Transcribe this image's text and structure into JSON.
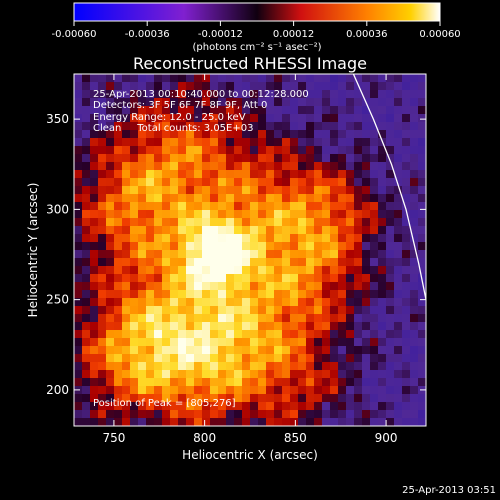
{
  "chart_data": {
    "type": "heatmap",
    "title": "Reconstructed RHESSI Image",
    "xlabel": "Heliocentric X (arcsec)",
    "ylabel": "Heliocentric Y (arcsec)",
    "xlim": [
      728,
      922
    ],
    "ylim": [
      180,
      375
    ],
    "x_ticks": [
      750,
      800,
      850,
      900
    ],
    "y_ticks": [
      200,
      250,
      300,
      350
    ],
    "colorbar": {
      "range": [
        -0.0006,
        0.0006
      ],
      "ticks": [
        "-0.00060",
        "-0.00036",
        "-0.00012",
        "0.00012",
        "0.00036",
        "0.00060"
      ],
      "unit_label": "(photons cm⁻² s⁻¹ asec⁻²)",
      "colors": [
        "#0000ff",
        "#8020d0",
        "#d01010",
        "#ff6000",
        "#ffd000",
        "#ffffff"
      ]
    },
    "info_lines": [
      "25-Apr-2013 00:10:40.000 to 00:12:28.000",
      "Detectors: 3F 5F 6F 7F 8F 9F, Att 0",
      "Energy Range: 12.0 - 25.0 keV",
      "Clean     Total counts: 3.05E+03"
    ],
    "peak_label": "Position of Peak = [805,276]",
    "peak": [
      805,
      276
    ],
    "limb_curve": [
      [
        882,
        375
      ],
      [
        893,
        350
      ],
      [
        903,
        325
      ],
      [
        911,
        300
      ],
      [
        918,
        270
      ],
      [
        922,
        250
      ]
    ],
    "grid": false,
    "legend": "none"
  },
  "footer_timestamp": "25-Apr-2013 03:51"
}
